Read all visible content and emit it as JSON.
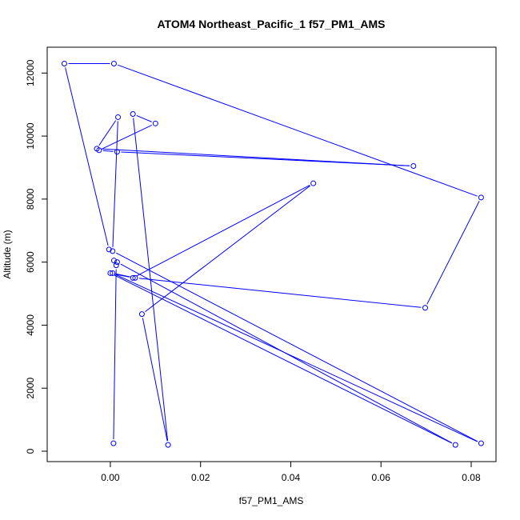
{
  "chart_data": {
    "type": "line",
    "title": "ATOM4 Northeast_Pacific_1 f57_PM1_AMS",
    "xlabel": "f57_PM1_AMS",
    "ylabel": "Altitude (m)",
    "xlim": [
      -0.014,
      0.0855
    ],
    "ylim": [
      -330,
      12820
    ],
    "x_ticks": [
      {
        "value": 0.0,
        "label": "0.00"
      },
      {
        "value": 0.02,
        "label": "0.02"
      },
      {
        "value": 0.04,
        "label": "0.04"
      },
      {
        "value": 0.06,
        "label": "0.06"
      },
      {
        "value": 0.08,
        "label": "0.08"
      }
    ],
    "y_ticks": [
      {
        "value": 0,
        "label": "0"
      },
      {
        "value": 2000,
        "label": "2000"
      },
      {
        "value": 4000,
        "label": "4000"
      },
      {
        "value": 6000,
        "label": "6000"
      },
      {
        "value": 8000,
        "label": "8000"
      },
      {
        "value": 10000,
        "label": "10000"
      },
      {
        "value": 12000,
        "label": "12000"
      }
    ],
    "grid": false,
    "color": "#0000ff",
    "series": [
      {
        "points": [
          {
            "x": 0.0007,
            "y": 250
          },
          {
            "x": 0.0013,
            "y": 5900
          },
          {
            "x": 0.0008,
            "y": 6050
          },
          {
            "x": 0.0015,
            "y": 6000
          },
          {
            "x": 0.0765,
            "y": 200
          },
          {
            "x": 0.0,
            "y": 5650
          },
          {
            "x": 0.005,
            "y": 5500
          },
          {
            "x": 0.045,
            "y": 8500
          },
          {
            "x": 0.007,
            "y": 4350
          },
          {
            "x": 0.0128,
            "y": 200
          },
          {
            "x": 0.005,
            "y": 10700
          },
          {
            "x": 0.01,
            "y": 10400
          },
          {
            "x": -0.0025,
            "y": 9550
          },
          {
            "x": 0.0015,
            "y": 9500
          },
          {
            "x": 0.0672,
            "y": 9050
          },
          {
            "x": -0.003,
            "y": 9600
          },
          {
            "x": 0.0017,
            "y": 10600
          },
          {
            "x": 0.0005,
            "y": 6350
          },
          {
            "x": 0.0822,
            "y": 250
          },
          {
            "x": 0.0005,
            "y": 5650
          },
          {
            "x": 0.0055,
            "y": 5500
          },
          {
            "x": 0.0698,
            "y": 4550
          },
          {
            "x": 0.0822,
            "y": 8050
          },
          {
            "x": 0.0008,
            "y": 12300
          },
          {
            "x": -0.0102,
            "y": 12300
          },
          {
            "x": -0.0003,
            "y": 6400
          }
        ]
      }
    ]
  }
}
